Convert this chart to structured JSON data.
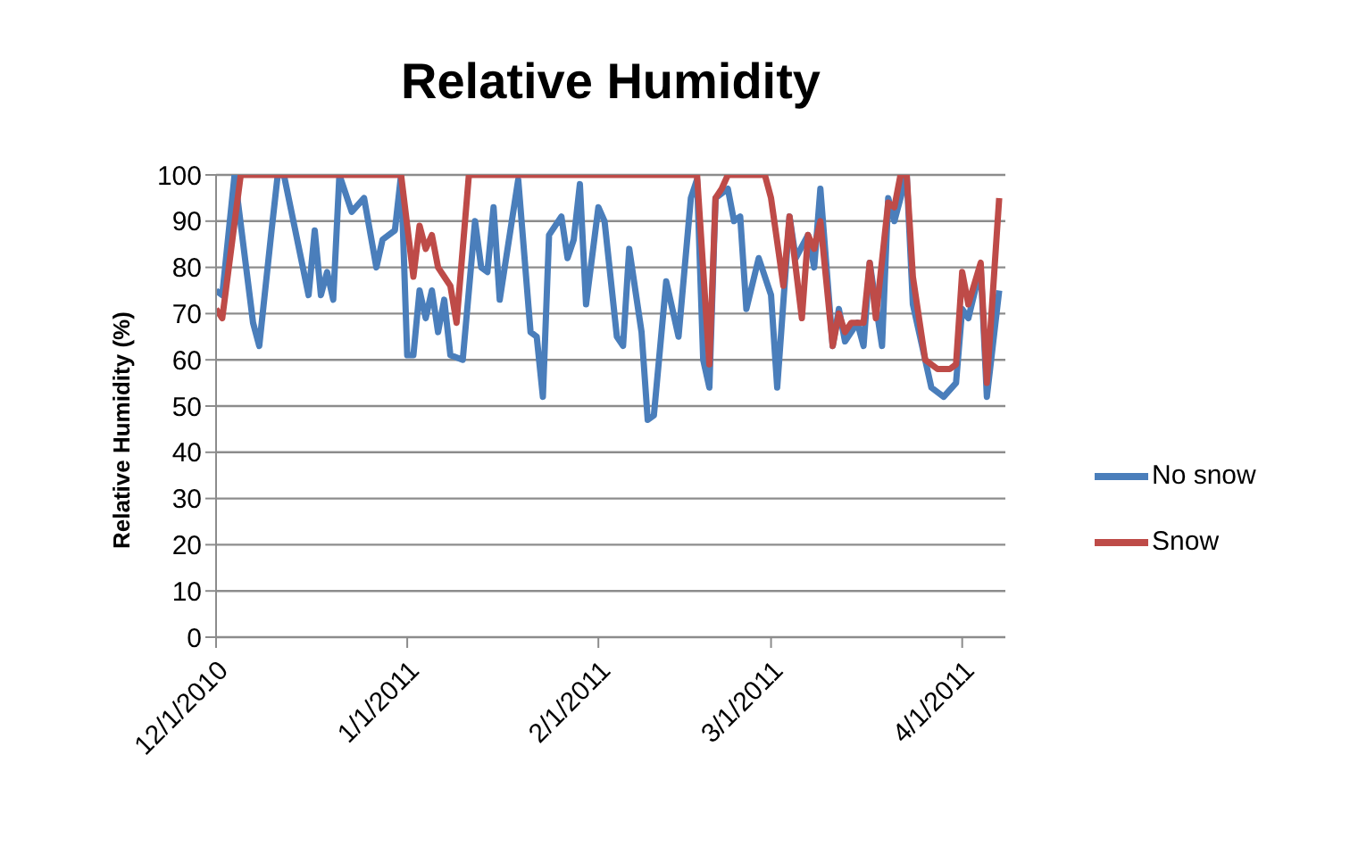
{
  "chart_data": {
    "type": "line",
    "title": "Relative Humidity",
    "ylabel": "Relative Humidity (%)",
    "xlim": [
      "2010-12-01",
      "2011-04-08"
    ],
    "xticks": [
      {
        "value": "2010-12-01",
        "label": "12/1/2010"
      },
      {
        "value": "2011-01-01",
        "label": "1/1/2011"
      },
      {
        "value": "2011-02-01",
        "label": "2/1/2011"
      },
      {
        "value": "2011-03-01",
        "label": "3/1/2011"
      },
      {
        "value": "2011-04-01",
        "label": "4/1/2011"
      }
    ],
    "ylim": [
      0,
      100
    ],
    "yticks": [
      0,
      10,
      20,
      30,
      40,
      50,
      60,
      70,
      80,
      90,
      100
    ],
    "grid": "y",
    "legend": "right",
    "marker": "none",
    "line_style": "solid",
    "series": [
      {
        "name": "No snow",
        "color": "#4a7ebb",
        "x": [
          "2010-12-01",
          "2010-12-02",
          "2010-12-04",
          "2010-12-07",
          "2010-12-08",
          "2010-12-10",
          "2010-12-11",
          "2010-12-12",
          "2010-12-16",
          "2010-12-17",
          "2010-12-18",
          "2010-12-19",
          "2010-12-20",
          "2010-12-21",
          "2010-12-23",
          "2010-12-25",
          "2010-12-27",
          "2010-12-28",
          "2010-12-30",
          "2010-12-31",
          "2011-01-01",
          "2011-01-02",
          "2011-01-03",
          "2011-01-04",
          "2011-01-05",
          "2011-01-06",
          "2011-01-07",
          "2011-01-08",
          "2011-01-10",
          "2011-01-12",
          "2011-01-13",
          "2011-01-14",
          "2011-01-15",
          "2011-01-16",
          "2011-01-19",
          "2011-01-21",
          "2011-01-22",
          "2011-01-23",
          "2011-01-24",
          "2011-01-26",
          "2011-01-27",
          "2011-01-28",
          "2011-01-29",
          "2011-01-30",
          "2011-02-01",
          "2011-02-02",
          "2011-02-04",
          "2011-02-05",
          "2011-02-06",
          "2011-02-08",
          "2011-02-09",
          "2011-02-10",
          "2011-02-12",
          "2011-02-14",
          "2011-02-16",
          "2011-02-17",
          "2011-02-18",
          "2011-02-19",
          "2011-02-20",
          "2011-02-22",
          "2011-02-23",
          "2011-02-24",
          "2011-02-25",
          "2011-02-27",
          "2011-03-01",
          "2011-03-02",
          "2011-03-04",
          "2011-03-05",
          "2011-03-07",
          "2011-03-08",
          "2011-03-09",
          "2011-03-11",
          "2011-03-12",
          "2011-03-13",
          "2011-03-15",
          "2011-03-16",
          "2011-03-17",
          "2011-03-19",
          "2011-03-20",
          "2011-03-21",
          "2011-03-23",
          "2011-03-24",
          "2011-03-27",
          "2011-03-28",
          "2011-03-29",
          "2011-03-31",
          "2011-04-01",
          "2011-04-02",
          "2011-04-04",
          "2011-04-05",
          "2011-04-07"
        ],
        "values": [
          75,
          74,
          100,
          68,
          63,
          88,
          100,
          100,
          74,
          88,
          74,
          79,
          73,
          100,
          92,
          95,
          80,
          86,
          88,
          100,
          61,
          61,
          75,
          69,
          75,
          66,
          73,
          61,
          60,
          90,
          80,
          79,
          93,
          73,
          99,
          66,
          65,
          52,
          87,
          91,
          82,
          86,
          98,
          72,
          93,
          90,
          65,
          63,
          84,
          66,
          47,
          48,
          77,
          65,
          95,
          99,
          60,
          54,
          95,
          97,
          90,
          91,
          71,
          82,
          74,
          54,
          91,
          82,
          87,
          80,
          97,
          63,
          71,
          64,
          68,
          63,
          81,
          63,
          95,
          90,
          100,
          72,
          54,
          53,
          52,
          55,
          71,
          69,
          80,
          52,
          75
        ]
      },
      {
        "name": "Snow",
        "color": "#be4b48",
        "x": [
          "2010-12-01",
          "2010-12-02",
          "2010-12-05",
          "2010-12-31",
          "2011-01-02",
          "2011-01-03",
          "2011-01-04",
          "2011-01-05",
          "2011-01-06",
          "2011-01-07",
          "2011-01-08",
          "2011-01-09",
          "2011-01-11",
          "2011-02-17",
          "2011-02-19",
          "2011-02-20",
          "2011-02-21",
          "2011-02-22",
          "2011-02-28",
          "2011-03-01",
          "2011-03-03",
          "2011-03-04",
          "2011-03-06",
          "2011-03-07",
          "2011-03-08",
          "2011-03-09",
          "2011-03-11",
          "2011-03-12",
          "2011-03-13",
          "2011-03-14",
          "2011-03-16",
          "2011-03-17",
          "2011-03-18",
          "2011-03-20",
          "2011-03-21",
          "2011-03-22",
          "2011-03-23",
          "2011-03-24",
          "2011-03-26",
          "2011-03-28",
          "2011-03-30",
          "2011-03-31",
          "2011-04-01",
          "2011-04-02",
          "2011-04-04",
          "2011-04-05",
          "2011-04-07"
        ],
        "values": [
          71,
          69,
          100,
          100,
          78,
          89,
          84,
          87,
          80,
          78,
          76,
          68,
          100,
          100,
          59,
          95,
          97,
          100,
          100,
          95,
          76,
          91,
          69,
          87,
          84,
          90,
          63,
          70,
          66,
          68,
          68,
          81,
          69,
          94,
          93,
          100,
          100,
          78,
          60,
          58,
          58,
          59,
          79,
          72,
          81,
          55,
          95
        ]
      }
    ]
  }
}
